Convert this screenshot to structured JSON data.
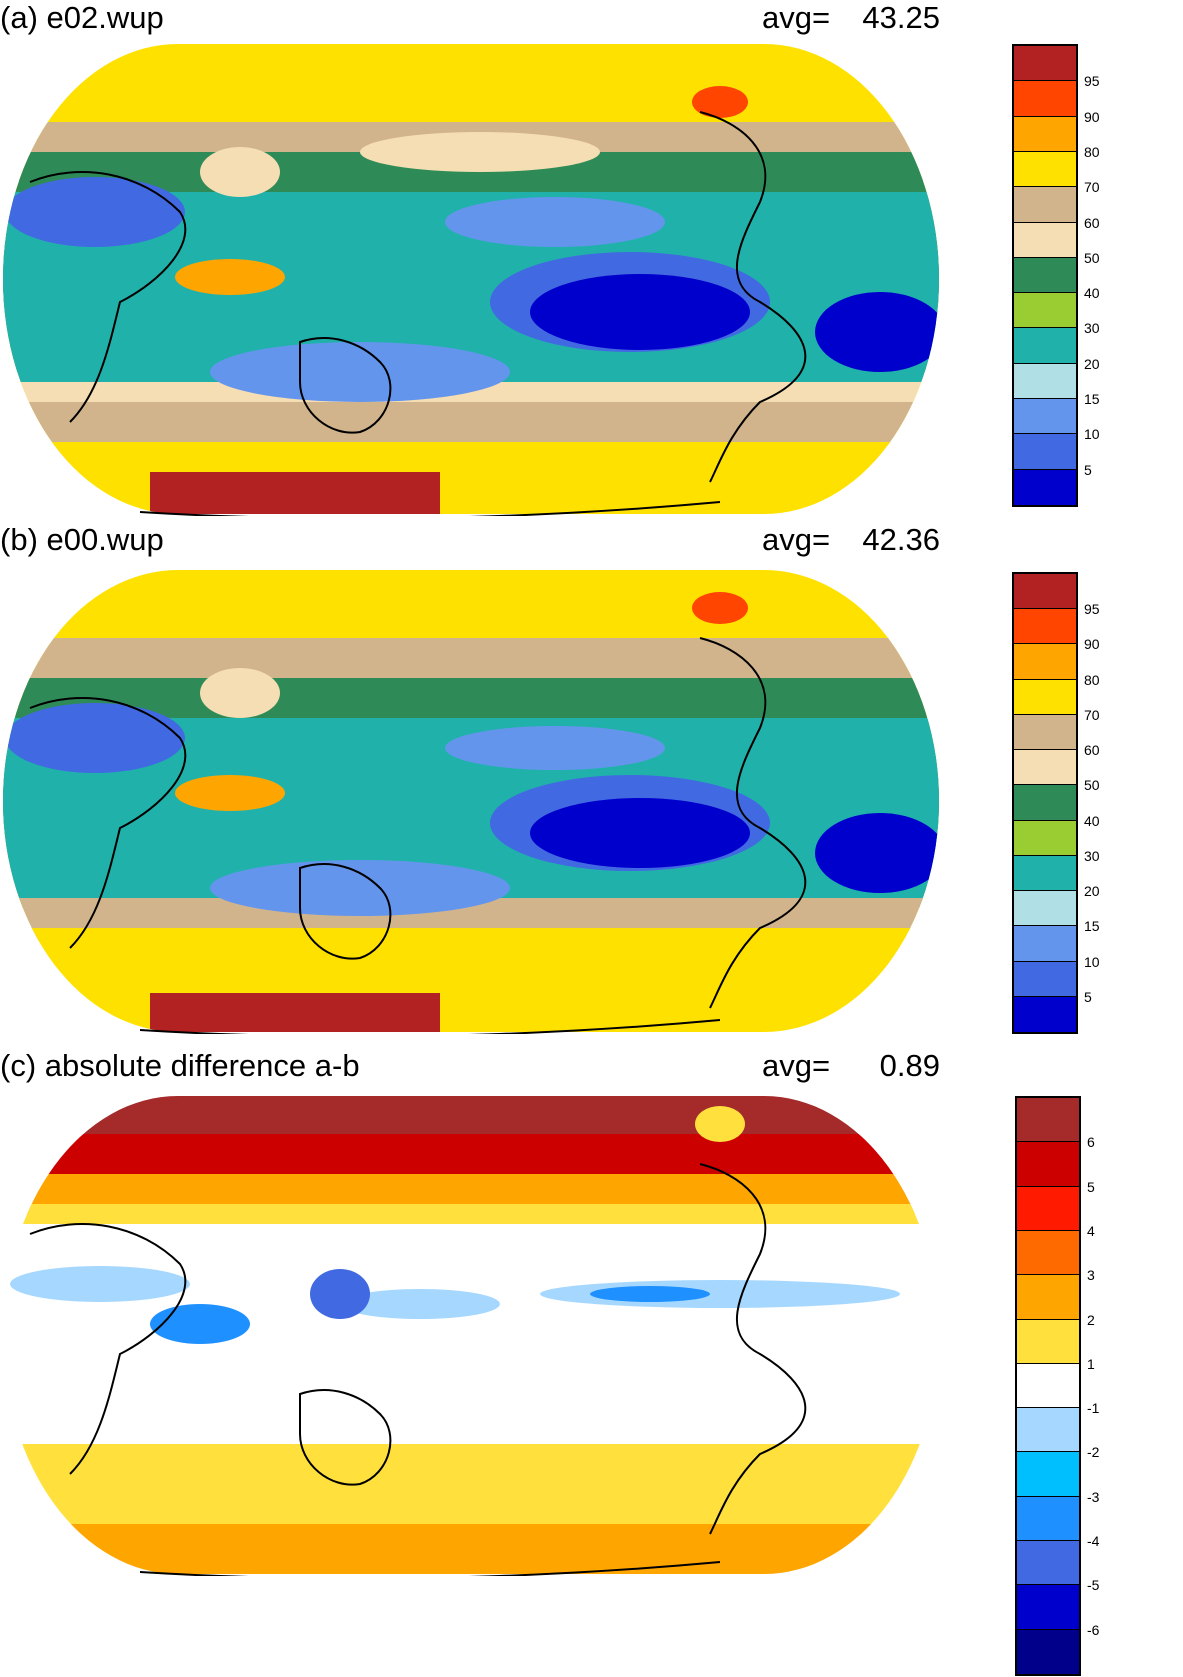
{
  "panels": [
    {
      "id": "a",
      "title": "(a) e02.wup",
      "avg_label": "avg=",
      "avg_value": "43.25",
      "colorbar": {
        "labels": [
          "95",
          "90",
          "80",
          "70",
          "60",
          "50",
          "40",
          "30",
          "20",
          "15",
          "10",
          "5"
        ],
        "colors": [
          "#b22222",
          "#ff4500",
          "#ffa500",
          "#ffe100",
          "#d2b48c",
          "#f5deb3",
          "#2e8b57",
          "#9acd32",
          "#20b2aa",
          "#b0e0e6",
          "#6495ed",
          "#4169e1",
          "#0000cd"
        ]
      }
    },
    {
      "id": "b",
      "title": "(b) e00.wup",
      "avg_label": "avg=",
      "avg_value": "42.36",
      "colorbar": {
        "labels": [
          "95",
          "90",
          "80",
          "70",
          "60",
          "50",
          "40",
          "30",
          "20",
          "15",
          "10",
          "5"
        ],
        "colors": [
          "#b22222",
          "#ff4500",
          "#ffa500",
          "#ffe100",
          "#d2b48c",
          "#f5deb3",
          "#2e8b57",
          "#9acd32",
          "#20b2aa",
          "#b0e0e6",
          "#6495ed",
          "#4169e1",
          "#0000cd"
        ]
      }
    },
    {
      "id": "c",
      "title": "(c) absolute difference a-b",
      "avg_label": "avg=",
      "avg_value": "0.89",
      "colorbar": {
        "labels": [
          "6",
          "5",
          "4",
          "3",
          "2",
          "1",
          "-1",
          "-2",
          "-3",
          "-4",
          "-5",
          "-6"
        ],
        "colors": [
          "#a52a2a",
          "#cd0000",
          "#ff1a00",
          "#ff6a00",
          "#ffa500",
          "#ffe03c",
          "#ffffff",
          "#a6d8ff",
          "#00bfff",
          "#1e90ff",
          "#4169e1",
          "#0000cd",
          "#00008b"
        ]
      }
    }
  ]
}
